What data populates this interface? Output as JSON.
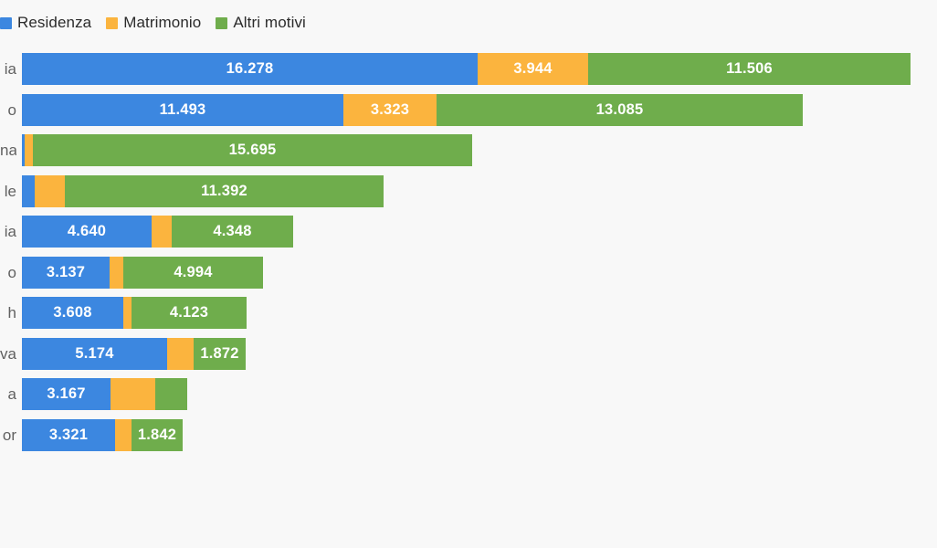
{
  "background_color": "#f8f8f8",
  "legend": {
    "items": [
      {
        "label": "Residenza",
        "color": "#3c87e0"
      },
      {
        "label": "Matrimonio",
        "color": "#fbb43e"
      },
      {
        "label": "Altri motivi",
        "color": "#6fad4c"
      }
    ]
  },
  "chart_data": {
    "type": "bar",
    "orientation": "horizontal",
    "stacked": true,
    "grid": false,
    "legend_position": "top-left",
    "xlim": [
      0,
      32500
    ],
    "categories_visible_fragments": [
      "ia",
      "o",
      "na",
      "le",
      "ia",
      "o",
      "h",
      "va",
      "a",
      "or"
    ],
    "series": [
      {
        "name": "Residenza",
        "color": "#3c87e0",
        "values": [
          16278,
          11493,
          100,
          450,
          4640,
          3137,
          3608,
          5174,
          3167,
          3321
        ]
      },
      {
        "name": "Matrimonio",
        "color": "#fbb43e",
        "values": [
          3944,
          3323,
          300,
          1070,
          730,
          480,
          290,
          950,
          1600,
          580
        ]
      },
      {
        "name": "Altri motivi",
        "color": "#6fad4c",
        "values": [
          11506,
          13085,
          15695,
          11392,
          4348,
          4994,
          4123,
          1872,
          1140,
          1842
        ]
      }
    ],
    "value_labels": [
      [
        "16.278",
        "3.944",
        "11.506"
      ],
      [
        "11.493",
        "3.323",
        "13.085"
      ],
      [
        "",
        "",
        "15.695"
      ],
      [
        "",
        "",
        "11.392"
      ],
      [
        "4.640",
        "",
        "4.348"
      ],
      [
        "3.137",
        "",
        "4.994"
      ],
      [
        "3.608",
        "",
        "4.123"
      ],
      [
        "5.174",
        "",
        "1.872"
      ],
      [
        "3.167",
        "",
        ""
      ],
      [
        "3.321",
        "",
        "1.842"
      ]
    ]
  }
}
